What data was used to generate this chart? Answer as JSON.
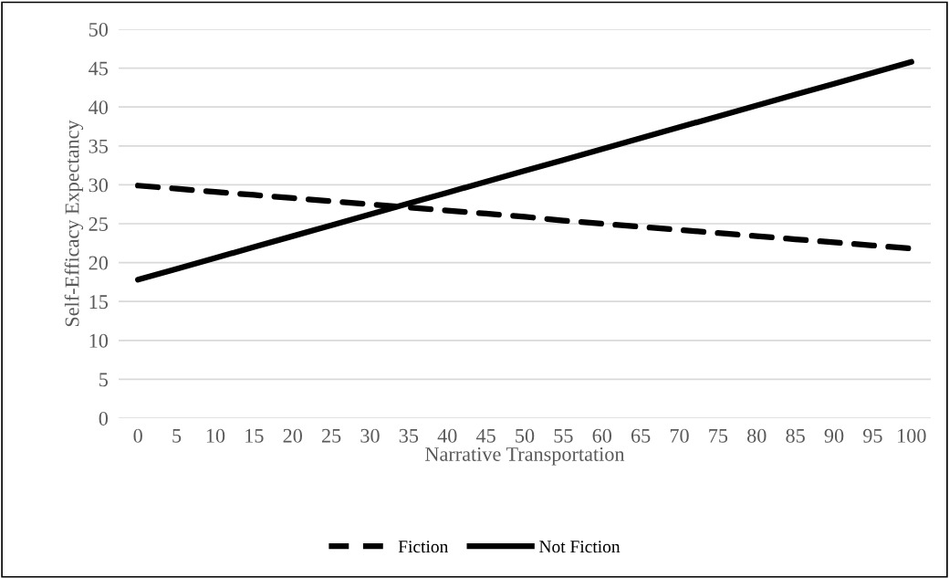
{
  "chart_data": {
    "type": "line",
    "xlabel": "Narrative Transportation",
    "ylabel": "Self-Efficacy Expectancy",
    "categories": [
      "0",
      "5",
      "10",
      "15",
      "20",
      "25",
      "30",
      "35",
      "40",
      "45",
      "50",
      "55",
      "60",
      "65",
      "70",
      "75",
      "80",
      "85",
      "90",
      "95",
      "100"
    ],
    "series": [
      {
        "name": "Fiction",
        "color": "#000000",
        "line_style": "dashed",
        "values": [
          29.9,
          29.5,
          29.1,
          28.7,
          28.3,
          27.9,
          27.5,
          27.1,
          26.7,
          26.3,
          25.9,
          25.4,
          25.0,
          24.6,
          24.2,
          23.8,
          23.4,
          23.0,
          22.6,
          22.2,
          21.8
        ]
      },
      {
        "name": "Not Fiction",
        "color": "#000000",
        "line_style": "solid",
        "values": [
          17.8,
          19.2,
          20.6,
          22.0,
          23.4,
          24.8,
          26.2,
          27.6,
          29.0,
          30.4,
          31.8,
          33.2,
          34.6,
          36.0,
          37.4,
          38.8,
          40.2,
          41.6,
          43.0,
          44.4,
          45.8
        ]
      }
    ],
    "ylim": [
      0,
      50
    ],
    "yticks": [
      0,
      5,
      10,
      15,
      20,
      25,
      30,
      35,
      40,
      45,
      50
    ],
    "grid": "y",
    "legend": "bottom",
    "marker": "none"
  }
}
